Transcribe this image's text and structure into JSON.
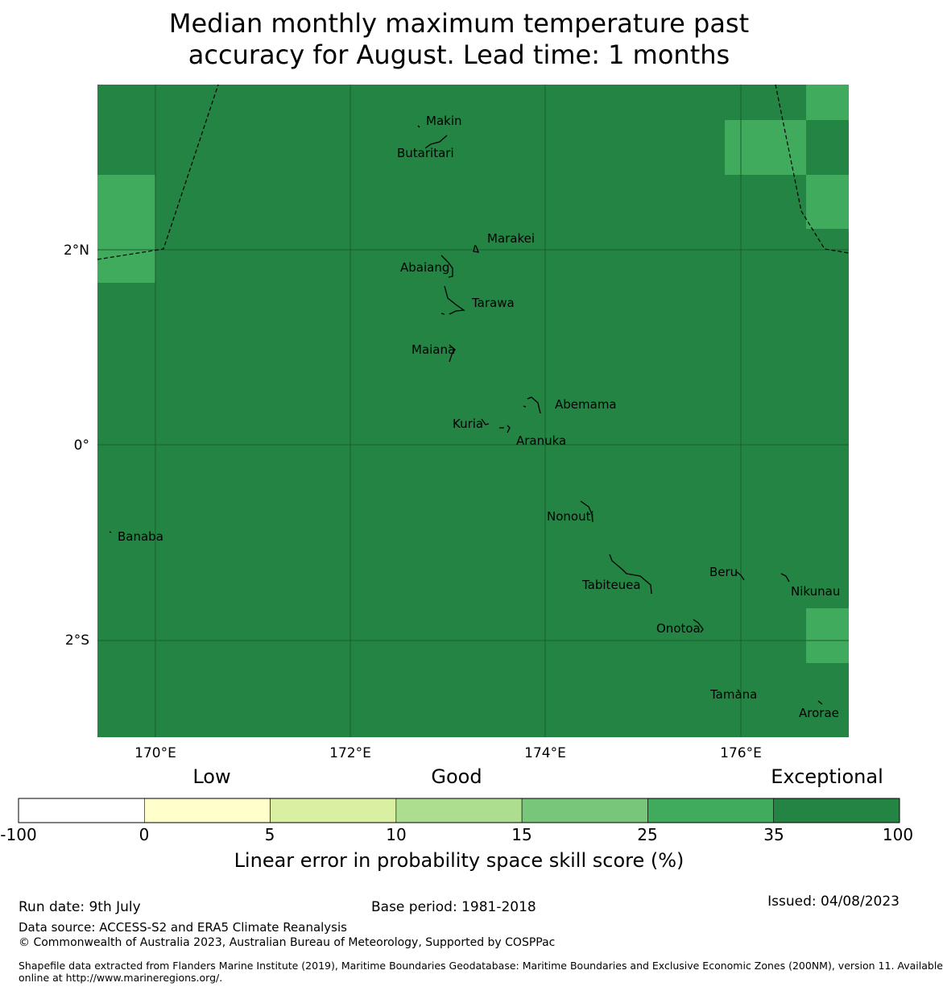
{
  "title_line1": "Median monthly maximum temperature past",
  "title_line2": "accuracy for August. Lead time: 1 months",
  "map": {
    "base_color": "#238443",
    "highlight_color": "#41ab5d",
    "lat_labels": [
      "2°N",
      "0°",
      "2°S"
    ],
    "lon_labels": [
      "170°E",
      "172°E",
      "174°E",
      "176°E"
    ],
    "islands": [
      {
        "name": "Makin"
      },
      {
        "name": "Butaritari"
      },
      {
        "name": "Marakei"
      },
      {
        "name": "Abaiang"
      },
      {
        "name": "Tarawa"
      },
      {
        "name": "Maiana"
      },
      {
        "name": "Abemama"
      },
      {
        "name": "Kuria"
      },
      {
        "name": "Aranuka"
      },
      {
        "name": "Banaba"
      },
      {
        "name": "Nonouti"
      },
      {
        "name": "Beru"
      },
      {
        "name": "Tabiteuea"
      },
      {
        "name": "Nikunau"
      },
      {
        "name": "Onotoa"
      },
      {
        "name": "Tamana"
      },
      {
        "name": "Arorae"
      }
    ]
  },
  "colorbar": {
    "categories": [
      "Low",
      "Good",
      "Exceptional"
    ],
    "ticks": [
      "-100",
      "0",
      "5",
      "10",
      "15",
      "25",
      "35",
      "100"
    ],
    "colors": [
      "#ffffff",
      "#ffffcc",
      "#d9f0a3",
      "#addd8e",
      "#78c679",
      "#41ab5d",
      "#238443"
    ],
    "label": "Linear error in probability space skill score (%)"
  },
  "footer": {
    "run_date": "Run date: 9th July",
    "base_period": "Base period: 1981-2018",
    "issued": "Issued: 04/08/2023",
    "data_source": "Data source: ACCESS-S2 and ERA5 Climate Reanalysis",
    "copyright": "© Commonwealth of Australia 2023, Australian Bureau of Meteorology, Supported by COSPPac",
    "shapefile_line1": "Shapefile data extracted from Flanders Marine Institute (2019), Maritime Boundaries Geodatabase: Maritime Boundaries and Exclusive Economic Zones (200NM), version 11. Available",
    "shapefile_line2": "online at http://www.marineregions.org/."
  }
}
